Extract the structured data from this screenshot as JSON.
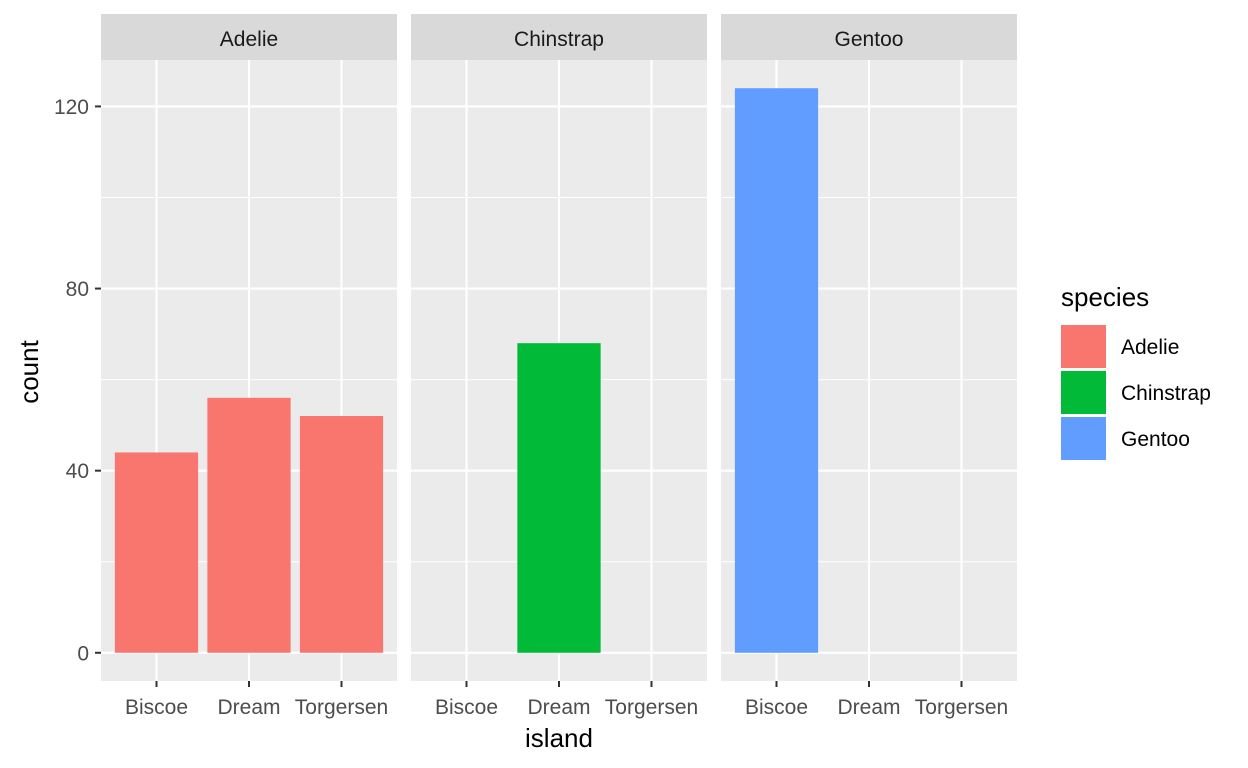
{
  "chart_data": {
    "type": "bar",
    "facet_variable": "species",
    "panels": [
      {
        "name": "Adelie",
        "categories": [
          "Biscoe",
          "Dream",
          "Torgersen"
        ],
        "values": [
          44,
          56,
          52
        ]
      },
      {
        "name": "Chinstrap",
        "categories": [
          "Biscoe",
          "Dream",
          "Torgersen"
        ],
        "values": [
          0,
          68,
          0
        ]
      },
      {
        "name": "Gentoo",
        "categories": [
          "Biscoe",
          "Dream",
          "Torgersen"
        ],
        "values": [
          124,
          0,
          0
        ]
      }
    ],
    "xlabel": "island",
    "ylabel": "count",
    "ylim": [
      -6.2,
      130.2
    ],
    "yticks": [
      "0",
      "40",
      "80",
      "120"
    ],
    "grid": true,
    "legend": {
      "title": "species",
      "placement": "right",
      "entries": [
        {
          "label": "Adelie",
          "color": "#F8766D"
        },
        {
          "label": "Chinstrap",
          "color": "#00BA38"
        },
        {
          "label": "Gentoo",
          "color": "#619CFF"
        }
      ]
    },
    "colors": {
      "panel_background": "#EBEBEB",
      "strip_background": "#D9D9D9",
      "grid": "#FFFFFF",
      "tick": "#333333"
    }
  }
}
